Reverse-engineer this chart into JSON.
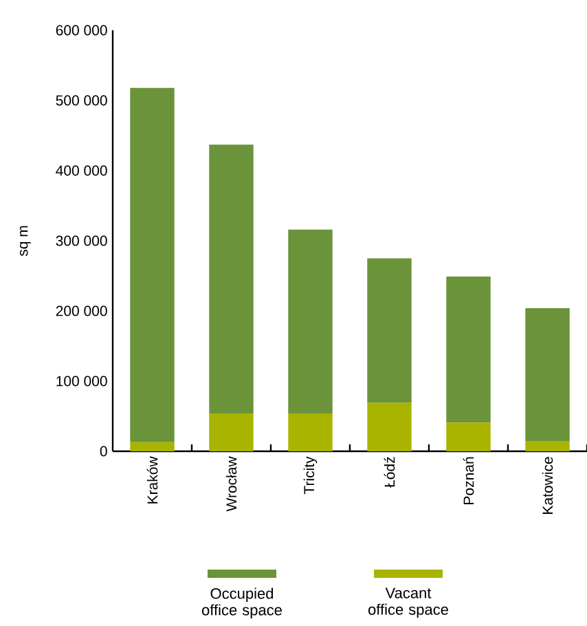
{
  "chart_data": {
    "type": "bar",
    "stacked": true,
    "ylabel": "sq m",
    "categories": [
      "Kraków",
      "Wrocław",
      "Tricity",
      "Łódź",
      "Poznań",
      "Katowice"
    ],
    "series": [
      {
        "name": "Vacant office space",
        "color": "#a8b400",
        "values": [
          13000,
          54000,
          54000,
          69000,
          41000,
          14000
        ]
      },
      {
        "name": "Occupied office space",
        "color": "#6a933a",
        "values": [
          505000,
          383000,
          262000,
          206000,
          208000,
          190000
        ]
      }
    ],
    "ylim": [
      0,
      600000
    ],
    "yticks": [
      0,
      {
        "value": 100000,
        "label": "100 000"
      },
      {
        "value": 200000,
        "label": "200 000"
      },
      {
        "value": 300000,
        "label": "300 000"
      },
      {
        "value": 400000,
        "label": "400 000"
      },
      {
        "value": 500000,
        "label": "500 000"
      },
      {
        "value": 600000,
        "label": "600 000"
      }
    ],
    "grid": false,
    "legend": "bottom"
  }
}
